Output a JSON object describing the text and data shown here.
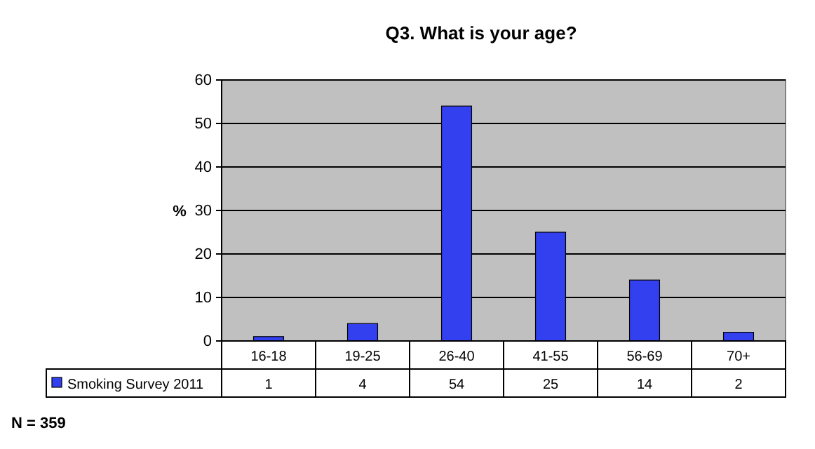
{
  "chart_data": {
    "type": "bar",
    "title": "Q3. What is your age?",
    "ylabel": "%",
    "categories": [
      "16-18",
      "19-25",
      "26-40",
      "41-55",
      "56-69",
      "70+"
    ],
    "series": [
      {
        "name": "Smoking Survey 2011",
        "color": "#3340f0",
        "values": [
          1,
          4,
          54,
          25,
          14,
          2
        ]
      }
    ],
    "ylim": [
      0,
      60
    ],
    "yticks": [
      0,
      10,
      20,
      30,
      40,
      50,
      60
    ],
    "grid": "y",
    "legend": "bottom",
    "data_labels": true,
    "annotations": [
      "N = 359"
    ]
  }
}
